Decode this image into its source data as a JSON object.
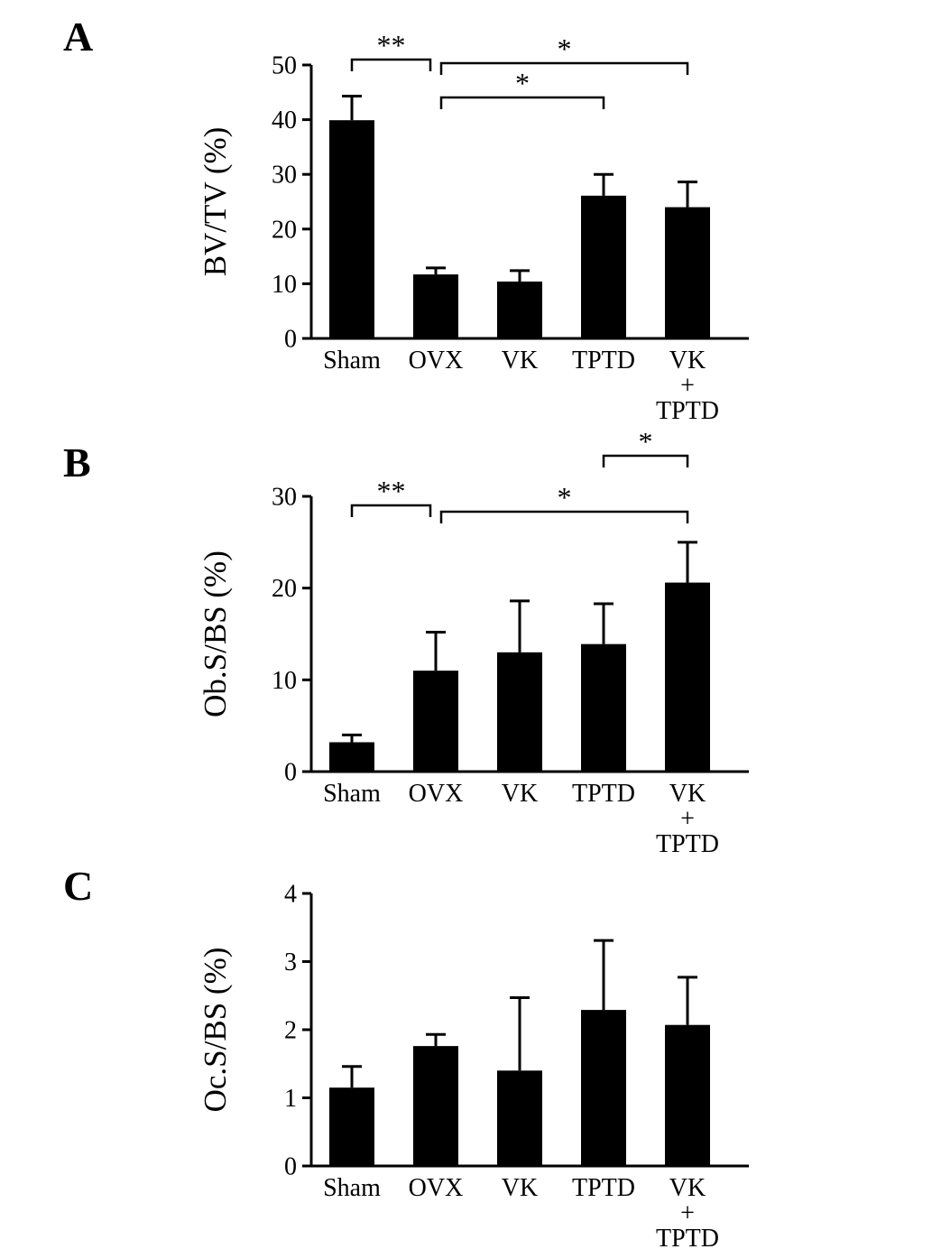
{
  "figure": {
    "background": "#ffffff",
    "bar_color": "#000000",
    "axis_color": "#000000",
    "grid": false,
    "legend": false,
    "error_bars": "upper whisker with cap"
  },
  "chart_data": [
    {
      "type": "bar",
      "panel_letter": "A",
      "ylabel": "BV/TV (%)",
      "ylim": [
        0,
        50
      ],
      "yticks": [
        0,
        10,
        20,
        30,
        40,
        50
      ],
      "categories": [
        "Sham",
        "OVX",
        "VK",
        "TPTD",
        "VK\n+\nTPTD"
      ],
      "values": [
        39.9,
        11.7,
        10.4,
        26.1,
        24.0
      ],
      "errors": [
        4.4,
        1.2,
        2.0,
        3.9,
        4.6
      ],
      "significance": [
        {
          "from": "Sham",
          "to": "OVX",
          "from_index": 0,
          "to_index": 1,
          "label": "**"
        },
        {
          "from": "OVX",
          "to": "VK+TPTD",
          "from_index": 1,
          "to_index": 4,
          "label": "*"
        },
        {
          "from": "OVX",
          "to": "TPTD",
          "from_index": 1,
          "to_index": 3,
          "label": "*"
        }
      ]
    },
    {
      "type": "bar",
      "panel_letter": "B",
      "ylabel": "Ob.S/BS (%)",
      "ylim": [
        0,
        30
      ],
      "yticks": [
        0,
        10,
        20,
        30
      ],
      "categories": [
        "Sham",
        "OVX",
        "VK",
        "TPTD",
        "VK\n+\nTPTD"
      ],
      "values": [
        3.2,
        11.0,
        13.0,
        13.9,
        20.6
      ],
      "errors": [
        0.8,
        4.2,
        5.6,
        4.4,
        4.4
      ],
      "significance": [
        {
          "from": "TPTD",
          "to": "VK+TPTD",
          "from_index": 3,
          "to_index": 4,
          "label": "*"
        },
        {
          "from": "Sham",
          "to": "OVX",
          "from_index": 0,
          "to_index": 1,
          "label": "**"
        },
        {
          "from": "OVX",
          "to": "VK+TPTD",
          "from_index": 1,
          "to_index": 4,
          "label": "*"
        }
      ]
    },
    {
      "type": "bar",
      "panel_letter": "C",
      "ylabel": "Oc.S/BS (%)",
      "ylim": [
        0,
        4
      ],
      "yticks": [
        0,
        1,
        2,
        3,
        4
      ],
      "categories": [
        "Sham",
        "OVX",
        "VK",
        "TPTD",
        "VK\n+\nTPTD"
      ],
      "values": [
        1.15,
        1.76,
        1.4,
        2.29,
        2.07
      ],
      "errors": [
        0.31,
        0.17,
        1.07,
        1.02,
        0.7
      ],
      "significance": []
    }
  ]
}
